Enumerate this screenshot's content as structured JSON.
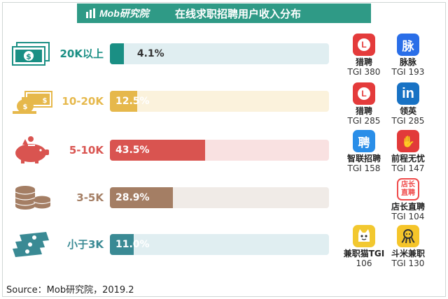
{
  "header": {
    "logo_text": "Mob研究院",
    "title": "在线求职招聘用户收入分布"
  },
  "chart_data": {
    "type": "bar",
    "orientation": "horizontal",
    "title": "在线求职招聘用户收入分布",
    "categories": [
      "20K以上",
      "10-20K",
      "5-10K",
      "3-5K",
      "小于3K"
    ],
    "values": [
      4.1,
      12.5,
      43.5,
      28.9,
      11.0
    ],
    "value_labels": [
      "4.1%",
      "12.5%",
      "43.5%",
      "28.9%",
      "11.0%"
    ],
    "xlim": [
      0,
      100
    ],
    "colors": [
      "#1a8f84",
      "#e6b84b",
      "#d95450",
      "#a47e64",
      "#3a8a94"
    ],
    "track_colors": [
      "#e0eef1",
      "#fbf2dc",
      "#f9e1e1",
      "#f0ebe7",
      "#e0eef1"
    ],
    "label_colors": [
      "#1a8f84",
      "#e6b84b",
      "#d95450",
      "#a47e64",
      "#3a8a94"
    ],
    "row_icons": [
      "banknote-icon",
      "money-bag-icon",
      "piggy-bank-icon",
      "coin-stack-icon",
      "cash-stack-icon"
    ]
  },
  "apps": [
    {
      "name": "猎聘",
      "tgi": "TGI 380",
      "icon": "liepin-app-icon",
      "color": "#e43b3b",
      "glyph": "L"
    },
    {
      "name": "脉脉",
      "tgi": "TGI 193",
      "icon": "maimai-app-icon",
      "color": "#2a6ee8",
      "glyph": "脉"
    },
    {
      "name": "猎聘",
      "tgi": "TGI 285",
      "icon": "liepin-app-icon",
      "color": "#e43b3b",
      "glyph": "L"
    },
    {
      "name": "领英",
      "tgi": "TGI 285",
      "icon": "linkedin-app-icon",
      "color": "#1872c4",
      "glyph": "in"
    },
    {
      "name": "智联招聘",
      "tgi": "TGI 158",
      "icon": "zhilian-app-icon",
      "color": "#2a8ee8",
      "glyph": "聘"
    },
    {
      "name": "前程无忧",
      "tgi": "TGI 147",
      "icon": "51job-app-icon",
      "color": "#e23a3a",
      "glyph": "✋"
    },
    {
      "name": "店长直聘",
      "tgi": "TGI 104",
      "icon": "dianzhang-app-icon",
      "color": "#ef4a4a",
      "glyph": "店长直聘"
    },
    {
      "name": "兼职猫TGI",
      "tgi": "106",
      "icon": "jianzhimao-app-icon",
      "color": "#f2c830",
      "glyph": "猫"
    },
    {
      "name": "斗米兼职",
      "tgi": "TGI 130",
      "icon": "doumi-app-icon",
      "color": "#f5c52a",
      "glyph": "米"
    }
  ],
  "source": "Source：Mob研究院，2019.2"
}
